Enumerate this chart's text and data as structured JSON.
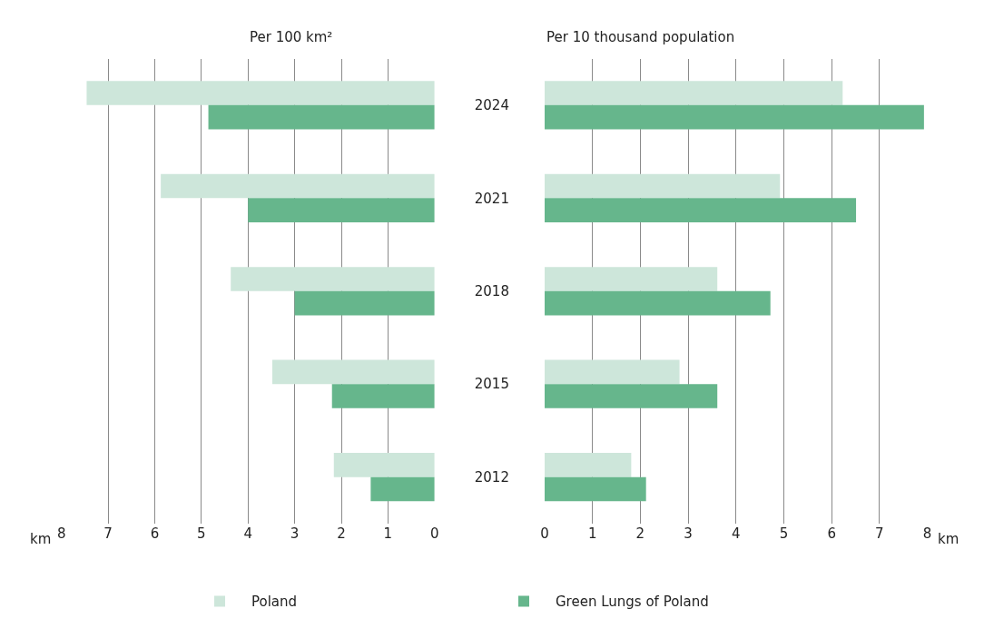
{
  "chart_data": [
    {
      "type": "bar",
      "orientation": "horizontal",
      "title": "Per 100 km²",
      "categories": [
        "2024",
        "2021",
        "2018",
        "2015",
        "2012"
      ],
      "series": [
        {
          "name": "Poland",
          "color": "#cde6da",
          "values": [
            7.46,
            5.87,
            4.37,
            3.48,
            2.16
          ]
        },
        {
          "name": "Green Lungs of Poland",
          "color": "#66b68c",
          "values": [
            4.85,
            4.0,
            3.0,
            2.2,
            1.37
          ]
        }
      ],
      "xlim": [
        8,
        0
      ],
      "xticks": [
        8,
        7,
        6,
        5,
        4,
        3,
        2,
        1,
        0
      ],
      "grid": "x",
      "legend": "bottom",
      "tick_labels": "x",
      "annotations": [
        "km"
      ]
    },
    {
      "type": "bar",
      "orientation": "horizontal",
      "title": "Per 10 thousand population",
      "categories": [
        "2024",
        "2021",
        "2018",
        "2015",
        "2012"
      ],
      "series": [
        {
          "name": "Poland",
          "color": "#cde6da",
          "values": [
            6.23,
            4.92,
            3.61,
            2.82,
            1.81
          ]
        },
        {
          "name": "Green Lungs of Poland",
          "color": "#66b68c",
          "values": [
            7.93,
            6.51,
            4.72,
            3.61,
            2.12
          ]
        }
      ],
      "xlim": [
        0,
        8
      ],
      "xticks": [
        0,
        1,
        2,
        3,
        4,
        5,
        6,
        7,
        8
      ],
      "grid": "x",
      "legend": "bottom",
      "annotations": [
        "km"
      ]
    }
  ]
}
